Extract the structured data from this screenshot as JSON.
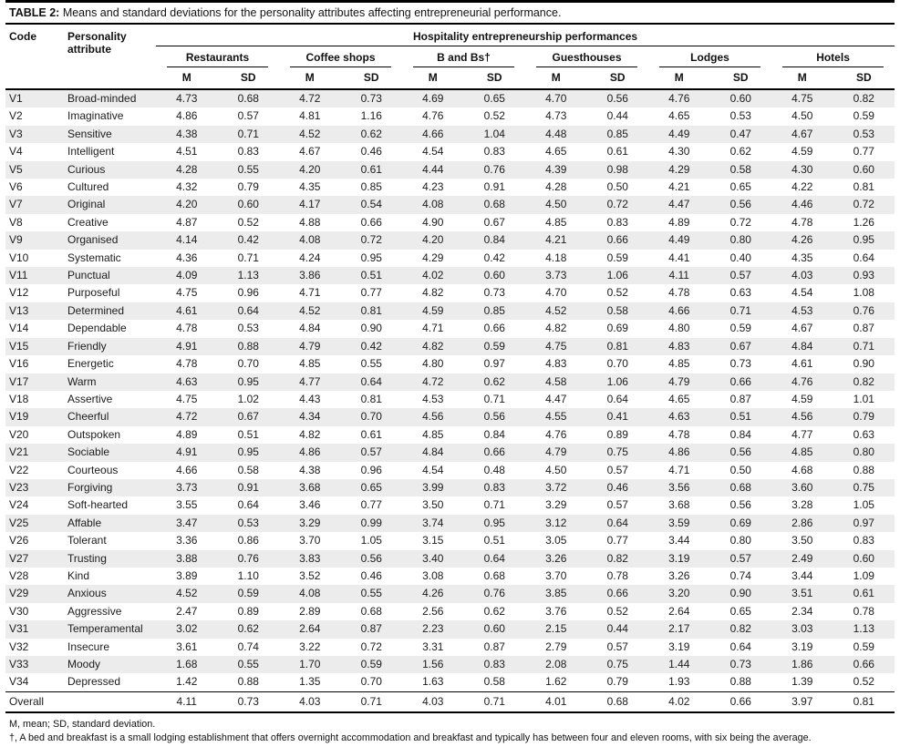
{
  "title": {
    "label": "TABLE 2:",
    "text": "Means and standard deviations for the personality attributes affecting entrepreneurial performance."
  },
  "header": {
    "code": "Code",
    "attribute": "Personality attribute",
    "span_title": "Hospitality entrepreneurship performances",
    "groups": [
      "Restaurants",
      "Coffee shops",
      "B and Bs†",
      "Guesthouses",
      "Lodges",
      "Hotels"
    ],
    "m_label": "M",
    "sd_label": "SD"
  },
  "rows": [
    {
      "code": "V1",
      "attribute": "Broad-minded",
      "values": [
        "4.73",
        "0.68",
        "4.72",
        "0.73",
        "4.69",
        "0.65",
        "4.70",
        "0.56",
        "4.76",
        "0.60",
        "4.75",
        "0.82"
      ]
    },
    {
      "code": "V2",
      "attribute": "Imaginative",
      "values": [
        "4.86",
        "0.57",
        "4.81",
        "1.16",
        "4.76",
        "0.52",
        "4.73",
        "0.44",
        "4.65",
        "0.53",
        "4.50",
        "0.59"
      ]
    },
    {
      "code": "V3",
      "attribute": "Sensitive",
      "values": [
        "4.38",
        "0.71",
        "4.52",
        "0.62",
        "4.66",
        "1.04",
        "4.48",
        "0.85",
        "4.49",
        "0.47",
        "4.67",
        "0.53"
      ]
    },
    {
      "code": "V4",
      "attribute": "Intelligent",
      "values": [
        "4.51",
        "0.83",
        "4.67",
        "0.46",
        "4.54",
        "0.83",
        "4.65",
        "0.61",
        "4.30",
        "0.62",
        "4.59",
        "0.77"
      ]
    },
    {
      "code": "V5",
      "attribute": "Curious",
      "values": [
        "4.28",
        "0.55",
        "4.20",
        "0.61",
        "4.44",
        "0.76",
        "4.39",
        "0.98",
        "4.29",
        "0.58",
        "4.30",
        "0.60"
      ]
    },
    {
      "code": "V6",
      "attribute": "Cultured",
      "values": [
        "4.32",
        "0.79",
        "4.35",
        "0.85",
        "4.23",
        "0.91",
        "4.28",
        "0.50",
        "4.21",
        "0.65",
        "4.22",
        "0.81"
      ]
    },
    {
      "code": "V7",
      "attribute": "Original",
      "values": [
        "4.20",
        "0.60",
        "4.17",
        "0.54",
        "4.08",
        "0.68",
        "4.50",
        "0.72",
        "4.47",
        "0.56",
        "4.46",
        "0.72"
      ]
    },
    {
      "code": "V8",
      "attribute": "Creative",
      "values": [
        "4.87",
        "0.52",
        "4.88",
        "0.66",
        "4.90",
        "0.67",
        "4.85",
        "0.83",
        "4.89",
        "0.72",
        "4.78",
        "1.26"
      ]
    },
    {
      "code": "V9",
      "attribute": "Organised",
      "values": [
        "4.14",
        "0.42",
        "4.08",
        "0.72",
        "4.20",
        "0.84",
        "4.21",
        "0.66",
        "4.49",
        "0.80",
        "4.26",
        "0.95"
      ]
    },
    {
      "code": "V10",
      "attribute": "Systematic",
      "values": [
        "4.36",
        "0.71",
        "4.24",
        "0.95",
        "4.29",
        "0.42",
        "4.18",
        "0.59",
        "4.41",
        "0.40",
        "4.35",
        "0.64"
      ]
    },
    {
      "code": "V11",
      "attribute": "Punctual",
      "values": [
        "4.09",
        "1.13",
        "3.86",
        "0.51",
        "4.02",
        "0.60",
        "3.73",
        "1.06",
        "4.11",
        "0.57",
        "4.03",
        "0.93"
      ]
    },
    {
      "code": "V12",
      "attribute": "Purposeful",
      "values": [
        "4.75",
        "0.96",
        "4.71",
        "0.77",
        "4.82",
        "0.73",
        "4.70",
        "0.52",
        "4.78",
        "0.63",
        "4.54",
        "1.08"
      ]
    },
    {
      "code": "V13",
      "attribute": "Determined",
      "values": [
        "4.61",
        "0.64",
        "4.52",
        "0.81",
        "4.59",
        "0.85",
        "4.52",
        "0.58",
        "4.66",
        "0.71",
        "4.53",
        "0.76"
      ]
    },
    {
      "code": "V14",
      "attribute": "Dependable",
      "values": [
        "4.78",
        "0.53",
        "4.84",
        "0.90",
        "4.71",
        "0.66",
        "4.82",
        "0.69",
        "4.80",
        "0.59",
        "4.67",
        "0.87"
      ]
    },
    {
      "code": "V15",
      "attribute": "Friendly",
      "values": [
        "4.91",
        "0.88",
        "4.79",
        "0.42",
        "4.82",
        "0.59",
        "4.75",
        "0.81",
        "4.83",
        "0.67",
        "4.84",
        "0.71"
      ]
    },
    {
      "code": "V16",
      "attribute": "Energetic",
      "values": [
        "4.78",
        "0.70",
        "4.85",
        "0.55",
        "4.80",
        "0.97",
        "4.83",
        "0.70",
        "4.85",
        "0.73",
        "4.61",
        "0.90"
      ]
    },
    {
      "code": "V17",
      "attribute": "Warm",
      "values": [
        "4.63",
        "0.95",
        "4.77",
        "0.64",
        "4.72",
        "0.62",
        "4.58",
        "1.06",
        "4.79",
        "0.66",
        "4.76",
        "0.82"
      ]
    },
    {
      "code": "V18",
      "attribute": "Assertive",
      "values": [
        "4.75",
        "1.02",
        "4.43",
        "0.81",
        "4.53",
        "0.71",
        "4.47",
        "0.64",
        "4.65",
        "0.87",
        "4.59",
        "1.01"
      ]
    },
    {
      "code": "V19",
      "attribute": "Cheerful",
      "values": [
        "4.72",
        "0.67",
        "4.34",
        "0.70",
        "4.56",
        "0.56",
        "4.55",
        "0.41",
        "4.63",
        "0.51",
        "4.56",
        "0.79"
      ]
    },
    {
      "code": "V20",
      "attribute": "Outspoken",
      "values": [
        "4.89",
        "0.51",
        "4.82",
        "0.61",
        "4.85",
        "0.84",
        "4.76",
        "0.89",
        "4.78",
        "0.84",
        "4.77",
        "0.63"
      ]
    },
    {
      "code": "V21",
      "attribute": "Sociable",
      "values": [
        "4.91",
        "0.95",
        "4.86",
        "0.57",
        "4.84",
        "0.66",
        "4.79",
        "0.75",
        "4.86",
        "0.56",
        "4.85",
        "0.80"
      ]
    },
    {
      "code": "V22",
      "attribute": "Courteous",
      "values": [
        "4.66",
        "0.58",
        "4.38",
        "0.96",
        "4.54",
        "0.48",
        "4.50",
        "0.57",
        "4.71",
        "0.50",
        "4.68",
        "0.88"
      ]
    },
    {
      "code": "V23",
      "attribute": "Forgiving",
      "values": [
        "3.73",
        "0.91",
        "3.68",
        "0.65",
        "3.99",
        "0.83",
        "3.72",
        "0.46",
        "3.56",
        "0.68",
        "3.60",
        "0.75"
      ]
    },
    {
      "code": "V24",
      "attribute": "Soft-hearted",
      "values": [
        "3.55",
        "0.64",
        "3.46",
        "0.77",
        "3.50",
        "0.71",
        "3.29",
        "0.57",
        "3.68",
        "0.56",
        "3.28",
        "1.05"
      ]
    },
    {
      "code": "V25",
      "attribute": "Affable",
      "values": [
        "3.47",
        "0.53",
        "3.29",
        "0.99",
        "3.74",
        "0.95",
        "3.12",
        "0.64",
        "3.59",
        "0.69",
        "2.86",
        "0.97"
      ]
    },
    {
      "code": "V26",
      "attribute": "Tolerant",
      "values": [
        "3.36",
        "0.86",
        "3.70",
        "1.05",
        "3.15",
        "0.51",
        "3.05",
        "0.77",
        "3.44",
        "0.80",
        "3.50",
        "0.83"
      ]
    },
    {
      "code": "V27",
      "attribute": "Trusting",
      "values": [
        "3.88",
        "0.76",
        "3.83",
        "0.56",
        "3.40",
        "0.64",
        "3.26",
        "0.82",
        "3.19",
        "0.57",
        "2.49",
        "0.60"
      ]
    },
    {
      "code": "V28",
      "attribute": "Kind",
      "values": [
        "3.89",
        "1.10",
        "3.52",
        "0.46",
        "3.08",
        "0.68",
        "3.70",
        "0.78",
        "3.26",
        "0.74",
        "3.44",
        "1.09"
      ]
    },
    {
      "code": "V29",
      "attribute": "Anxious",
      "values": [
        "4.52",
        "0.59",
        "4.08",
        "0.55",
        "4.26",
        "0.76",
        "3.85",
        "0.66",
        "3.20",
        "0.90",
        "3.51",
        "0.61"
      ]
    },
    {
      "code": "V30",
      "attribute": "Aggressive",
      "values": [
        "2.47",
        "0.89",
        "2.89",
        "0.68",
        "2.56",
        "0.62",
        "3.76",
        "0.52",
        "2.64",
        "0.65",
        "2.34",
        "0.78"
      ]
    },
    {
      "code": "V31",
      "attribute": "Temperamental",
      "values": [
        "3.02",
        "0.62",
        "2.64",
        "0.87",
        "2.23",
        "0.60",
        "2.15",
        "0.44",
        "2.17",
        "0.82",
        "3.03",
        "1.13"
      ]
    },
    {
      "code": "V32",
      "attribute": "Insecure",
      "values": [
        "3.61",
        "0.74",
        "3.22",
        "0.72",
        "3.31",
        "0.87",
        "2.79",
        "0.57",
        "3.19",
        "0.64",
        "3.19",
        "0.59"
      ]
    },
    {
      "code": "V33",
      "attribute": "Moody",
      "values": [
        "1.68",
        "0.55",
        "1.70",
        "0.59",
        "1.56",
        "0.83",
        "2.08",
        "0.75",
        "1.44",
        "0.73",
        "1.86",
        "0.66"
      ]
    },
    {
      "code": "V34",
      "attribute": "Depressed",
      "values": [
        "1.42",
        "0.88",
        "1.35",
        "0.70",
        "1.63",
        "0.58",
        "1.62",
        "0.79",
        "1.93",
        "0.88",
        "1.39",
        "0.52"
      ]
    }
  ],
  "overall": {
    "label": "Overall",
    "values": [
      "4.11",
      "0.73",
      "4.03",
      "0.71",
      "4.03",
      "0.71",
      "4.01",
      "0.68",
      "4.02",
      "0.66",
      "3.97",
      "0.81"
    ]
  },
  "footnotes": [
    "M, mean; SD, standard deviation.",
    "†, A bed and breakfast is a small lodging establishment that offers overnight accommodation and breakfast and typically has between four and eleven rooms, with six being the average."
  ],
  "colors": {
    "stripe": "#ececec",
    "rule": "#000000",
    "text": "#1c1c1c"
  }
}
